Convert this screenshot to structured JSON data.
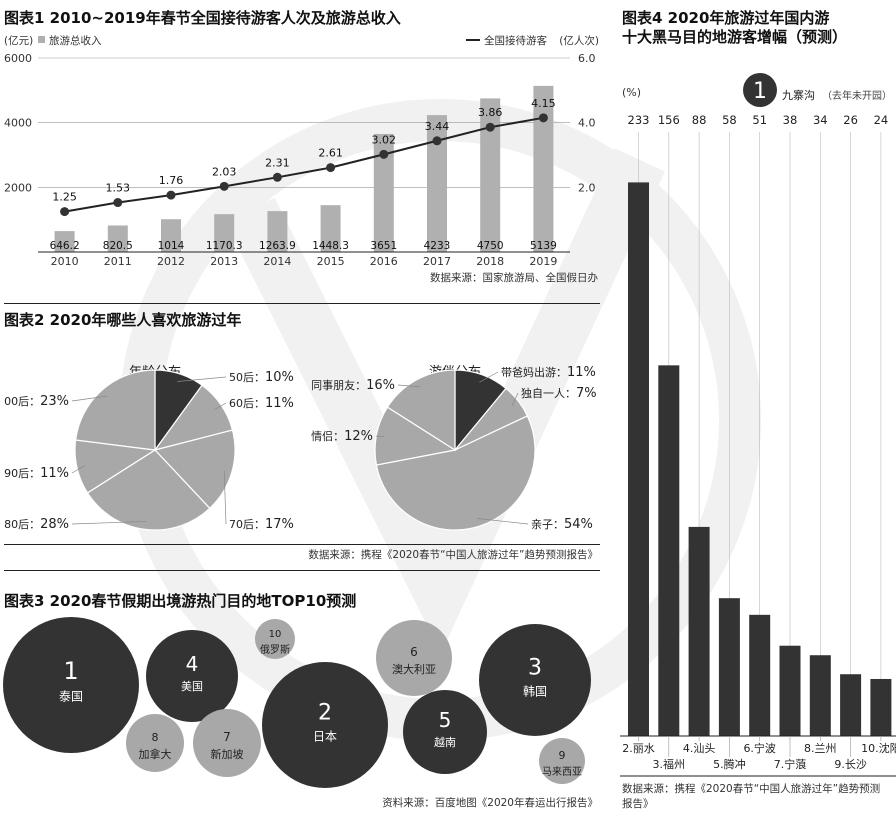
{
  "colors": {
    "dark": "#333333",
    "bar": "#b0b0b0",
    "mid": "#a8a8a8",
    "line": "#222222",
    "watermark": "#f0f0f0"
  },
  "chart_data": [
    {
      "id": "chart1",
      "type": "bar",
      "title": "图表1  2010~2019年春节全国接待游客人次及旅游总收入",
      "y_left_unit": "(亿元)",
      "y_right_unit": "(亿人次)",
      "legend_bar": "旅游总收入",
      "legend_line": "全国接待游客",
      "categories": [
        "2010",
        "2011",
        "2012",
        "2013",
        "2014",
        "2015",
        "2016",
        "2017",
        "2018",
        "2019"
      ],
      "series": [
        {
          "name": "旅游总收入",
          "type": "bar",
          "axis": "left",
          "values": [
            646.2,
            820.5,
            1014,
            1170.3,
            1263.9,
            1448.3,
            3651,
            4233,
            4750,
            5139
          ],
          "labels": [
            "646.2",
            "820.5",
            "1014",
            "1170.3",
            "1263.9",
            "1448.3",
            "3651",
            "4233",
            "4750",
            "5139"
          ]
        },
        {
          "name": "全国接待游客",
          "type": "line",
          "axis": "right",
          "values": [
            1.25,
            1.53,
            1.76,
            2.03,
            2.31,
            2.61,
            3.02,
            3.44,
            3.86,
            4.15
          ],
          "labels": [
            "1.25",
            "1.53",
            "1.76",
            "2.03",
            "2.31",
            "2.61",
            "3.02",
            "3.44",
            "3.86",
            "4.15"
          ]
        }
      ],
      "y_left_ticks": [
        "2000",
        "4000",
        "6000"
      ],
      "y_left_range": [
        0,
        6000
      ],
      "y_right_ticks": [
        "2.0",
        "4.0",
        "6.0"
      ],
      "y_right_range": [
        0,
        6
      ],
      "source": "数据来源：国家旅游局、全国假日办"
    },
    {
      "id": "chart2",
      "type": "pie",
      "title": "图表2  2020年哪些人喜欢旅游过年",
      "source": "数据来源：携程《2020春节“中国人旅游过年”趋势预测报告》",
      "pies": [
        {
          "name": "年龄分布",
          "slices": [
            {
              "label": "50后",
              "value": 10,
              "text": "10%"
            },
            {
              "label": "60后",
              "value": 11,
              "text": "11%"
            },
            {
              "label": "70后",
              "value": 17,
              "text": "17%"
            },
            {
              "label": "80后",
              "value": 28,
              "text": "28%"
            },
            {
              "label": "90后",
              "value": 11,
              "text": "11%"
            },
            {
              "label": "00后",
              "value": 23,
              "text": "23%"
            }
          ]
        },
        {
          "name": "游伴分布",
          "slices": [
            {
              "label": "带爸妈出游",
              "value": 11,
              "text": "11%"
            },
            {
              "label": "独自一人",
              "value": 7,
              "text": "7%"
            },
            {
              "label": "亲子",
              "value": 54,
              "text": "54%"
            },
            {
              "label": "情侣",
              "value": 12,
              "text": "12%"
            },
            {
              "label": "同事朋友",
              "value": 16,
              "text": "16%"
            }
          ]
        }
      ]
    },
    {
      "id": "chart3",
      "type": "bubble",
      "title": "图表3  2020春节假期出境游热门目的地TOP10预测",
      "source": "资料来源：百度地图《2020年春运出行报告》",
      "items": [
        {
          "rank": "1",
          "name": "泰国"
        },
        {
          "rank": "2",
          "name": "日本"
        },
        {
          "rank": "3",
          "name": "韩国"
        },
        {
          "rank": "4",
          "name": "美国"
        },
        {
          "rank": "5",
          "name": "越南"
        },
        {
          "rank": "6",
          "name": "澳大利亚"
        },
        {
          "rank": "7",
          "name": "新加坡"
        },
        {
          "rank": "8",
          "name": "加拿大"
        },
        {
          "rank": "9",
          "name": "马来西亚"
        },
        {
          "rank": "10",
          "name": "俄罗斯"
        }
      ]
    },
    {
      "id": "chart4",
      "type": "bar",
      "title_line1": "图表4  2020年旅游过年国内游",
      "title_line2": "十大黑马目的地游客增幅（预测）",
      "unit": "(%)",
      "top_rank": "1",
      "top_name": "九寨沟",
      "top_note": "（去年未开园）",
      "categories": [
        "2.丽水",
        "3.福州",
        "4.汕头",
        "5.腾冲",
        "6.宁波",
        "7.宁蒗",
        "8.兰州",
        "9.长沙",
        "10.沈阳"
      ],
      "values": [
        233,
        156,
        88,
        58,
        51,
        38,
        34,
        26,
        24
      ],
      "ylim": [
        0,
        250
      ],
      "source": "数据来源：携程《2020春节“中国人旅游过年”趋势预测报告》"
    }
  ]
}
